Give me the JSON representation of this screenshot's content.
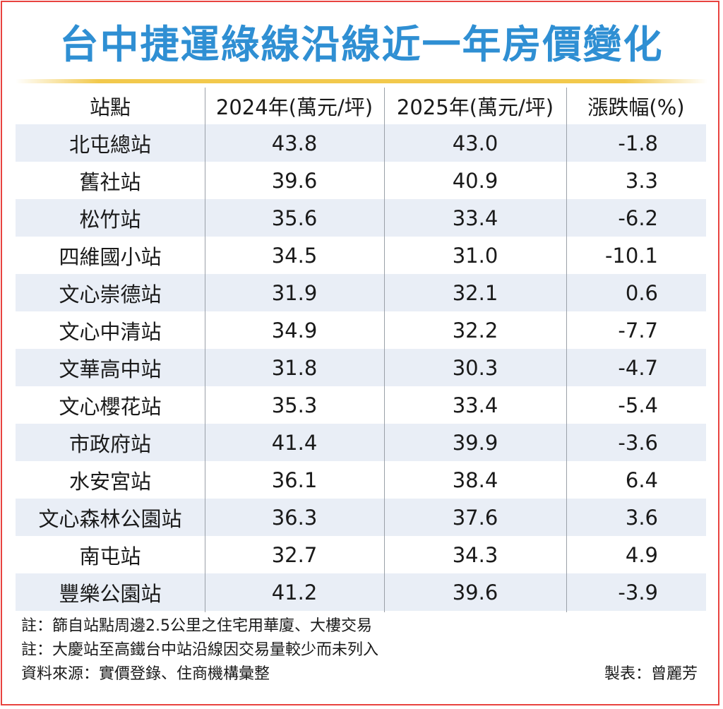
{
  "title": "台中捷運綠線沿線近一年房價變化",
  "table": {
    "headers": [
      "站點",
      "2024年(萬元/坪)",
      "2025年(萬元/坪)",
      "漲跌幅(%)"
    ],
    "rows": [
      [
        "北屯總站",
        "43.8",
        "43.0",
        "-1.8"
      ],
      [
        "舊社站",
        "39.6",
        "40.9",
        "3.3"
      ],
      [
        "松竹站",
        "35.6",
        "33.4",
        "-6.2"
      ],
      [
        "四維國小站",
        "34.5",
        "31.0",
        "-10.1"
      ],
      [
        "文心崇德站",
        "31.9",
        "32.1",
        "0.6"
      ],
      [
        "文心中清站",
        "34.9",
        "32.2",
        "-7.7"
      ],
      [
        "文華高中站",
        "31.8",
        "30.3",
        "-4.7"
      ],
      [
        "文心櫻花站",
        "35.3",
        "33.4",
        "-5.4"
      ],
      [
        "市政府站",
        "41.4",
        "39.9",
        "-3.6"
      ],
      [
        "水安宮站",
        "36.1",
        "38.4",
        "6.4"
      ],
      [
        "文心森林公園站",
        "36.3",
        "37.6",
        "3.6"
      ],
      [
        "南屯站",
        "32.7",
        "34.3",
        "4.9"
      ],
      [
        "豐樂公園站",
        "41.2",
        "39.6",
        "-3.9"
      ]
    ]
  },
  "notes": [
    "註：篩自站點周邊2.5公里之住宅用華廈、大樓交易",
    "註：大慶站至高鐵台中站沿線因交易量較少而未列入",
    "資料來源：實價登錄、住商機構彙整"
  ],
  "credit": "製表：曾麗芳",
  "colors": {
    "title": "#2f8fd3",
    "frame": "#e8433f",
    "rule": "#f2c94c",
    "row_shade": "#e9eef6"
  }
}
